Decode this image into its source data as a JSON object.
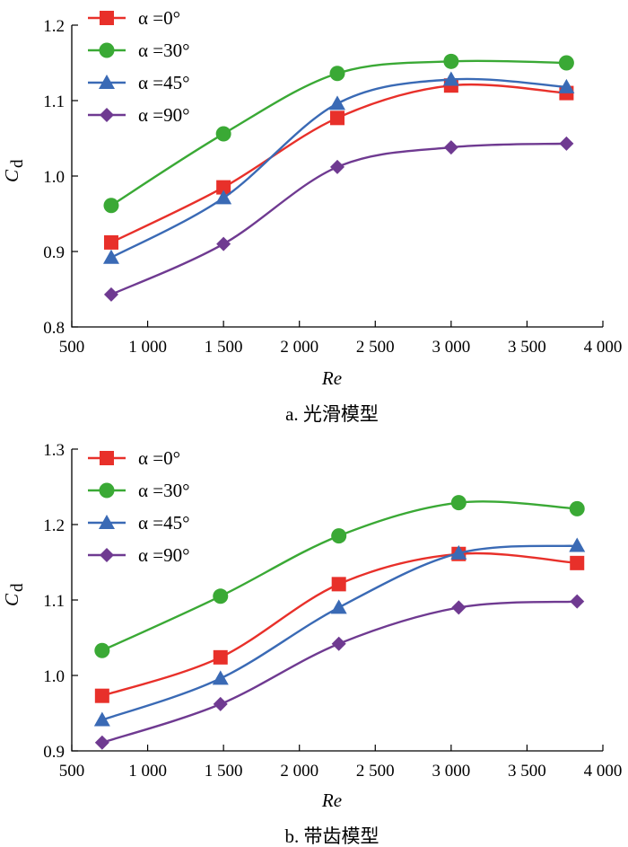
{
  "chart_data": [
    {
      "type": "line",
      "title": "a. 光滑模型",
      "xlabel": "Re",
      "ylabel": "C",
      "ylabel_sub": "d",
      "xlim": [
        500,
        4000
      ],
      "ylim": [
        0.8,
        1.2
      ],
      "xticks": [
        500,
        1000,
        1500,
        2000,
        2500,
        3000,
        3500,
        4000
      ],
      "xtick_labels": [
        "500",
        "1 000",
        "1 500",
        "2 000",
        "2 500",
        "3 000",
        "3 500",
        "4 000"
      ],
      "yticks": [
        0.8,
        0.9,
        1.0,
        1.1,
        1.2
      ],
      "ytick_labels": [
        "0.8",
        "0.9",
        "1.0",
        "1.1",
        "1.2"
      ],
      "legend_position": "top-left",
      "series": [
        {
          "name": "α =0°",
          "color": "#e8302a",
          "marker": "square",
          "x": [
            760,
            1500,
            2250,
            3000,
            3760
          ],
          "values": [
            0.912,
            0.985,
            1.077,
            1.12,
            1.11
          ]
        },
        {
          "name": "α =30°",
          "color": "#3aa935",
          "marker": "circle",
          "x": [
            760,
            1500,
            2250,
            3000,
            3760
          ],
          "values": [
            0.961,
            1.056,
            1.136,
            1.152,
            1.15
          ]
        },
        {
          "name": "α =45°",
          "color": "#3a6ab5",
          "marker": "triangle",
          "x": [
            760,
            1500,
            2250,
            3000,
            3760
          ],
          "values": [
            0.892,
            0.971,
            1.096,
            1.128,
            1.118
          ]
        },
        {
          "name": "α =90°",
          "color": "#6f3a91",
          "marker": "diamond",
          "x": [
            760,
            1500,
            2250,
            3000,
            3760
          ],
          "values": [
            0.843,
            0.91,
            1.012,
            1.038,
            1.043
          ]
        }
      ]
    },
    {
      "type": "line",
      "title": "b. 带齿模型",
      "xlabel": "Re",
      "ylabel": "C",
      "ylabel_sub": "d",
      "xlim": [
        500,
        4000
      ],
      "ylim": [
        0.9,
        1.3
      ],
      "xticks": [
        500,
        1000,
        1500,
        2000,
        2500,
        3000,
        3500,
        4000
      ],
      "xtick_labels": [
        "500",
        "1 000",
        "1 500",
        "2 000",
        "2 500",
        "3 000",
        "3 500",
        "4 000"
      ],
      "yticks": [
        0.9,
        1.0,
        1.1,
        1.2,
        1.3
      ],
      "ytick_labels": [
        "0.9",
        "1.0",
        "1.1",
        "1.2",
        "1.3"
      ],
      "legend_position": "top-left",
      "series": [
        {
          "name": "α =0°",
          "color": "#e8302a",
          "marker": "square",
          "x": [
            700,
            1480,
            2260,
            3050,
            3830
          ],
          "values": [
            0.973,
            1.024,
            1.121,
            1.161,
            1.149
          ]
        },
        {
          "name": "α =30°",
          "color": "#3aa935",
          "marker": "circle",
          "x": [
            700,
            1480,
            2260,
            3050,
            3830
          ],
          "values": [
            1.033,
            1.105,
            1.185,
            1.229,
            1.221
          ]
        },
        {
          "name": "α =45°",
          "color": "#3a6ab5",
          "marker": "triangle",
          "x": [
            700,
            1480,
            2260,
            3050,
            3830
          ],
          "values": [
            0.941,
            0.996,
            1.09,
            1.162,
            1.172
          ]
        },
        {
          "name": "α =90°",
          "color": "#6f3a91",
          "marker": "diamond",
          "x": [
            700,
            1480,
            2260,
            3050,
            3830
          ],
          "values": [
            0.911,
            0.962,
            1.042,
            1.09,
            1.098
          ]
        }
      ]
    }
  ]
}
